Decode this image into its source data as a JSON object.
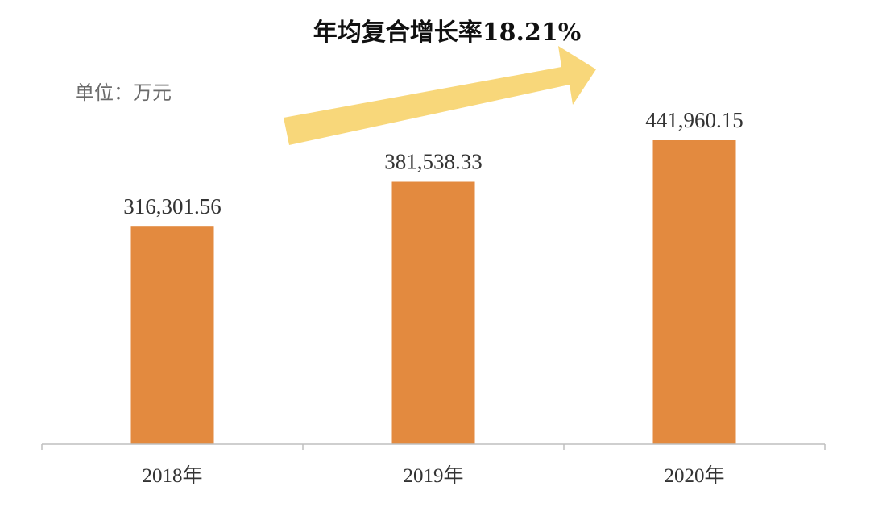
{
  "chart_data": {
    "type": "bar",
    "categories": [
      "2018年",
      "2019年",
      "2020年"
    ],
    "values": [
      316301.56,
      381538.33,
      441960.15
    ],
    "data_labels": [
      "316,301.56",
      "381,538.33",
      "441,960.15"
    ],
    "unit_label": "单位：万元",
    "annotation": "年均复合增长率18.21%",
    "ylim": [
      0,
      441960.15
    ],
    "grid": false,
    "legend": "none"
  },
  "colors": {
    "bar": "#e38a3f",
    "arrow": "#f8d77a",
    "axis": "#bfbfbf"
  }
}
